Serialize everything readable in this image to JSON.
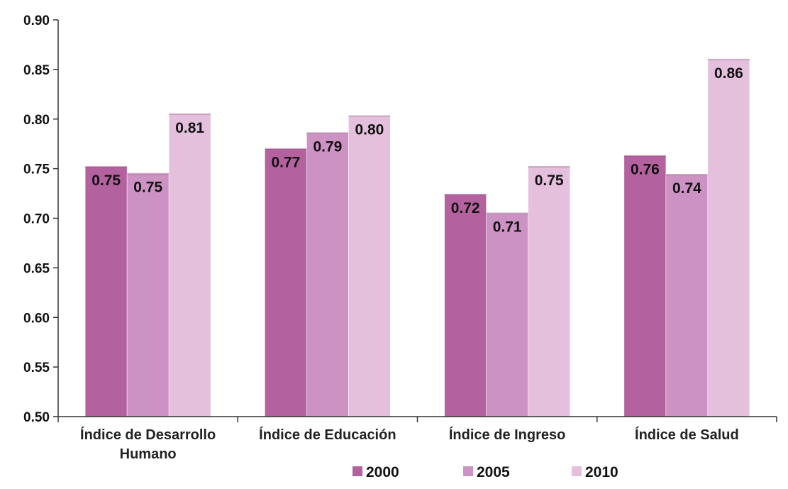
{
  "chart_data": {
    "type": "bar",
    "title": "",
    "xlabel": "",
    "ylabel": "",
    "ylim": [
      0.5,
      0.9
    ],
    "yticks": [
      "0.50",
      "0.55",
      "0.60",
      "0.65",
      "0.70",
      "0.75",
      "0.80",
      "0.85",
      "0.90"
    ],
    "grid": false,
    "legend_position": "bottom",
    "categories": [
      "Índice de Desarrollo Humano",
      "Índice de Educación",
      "Índice de Ingreso",
      "Índice de Salud"
    ],
    "series": [
      {
        "name": "2000",
        "color": "#b4629f",
        "values": [
          0.752,
          0.77,
          0.724,
          0.763
        ],
        "labels": [
          "0.75",
          "0.77",
          "0.72",
          "0.76"
        ]
      },
      {
        "name": "2005",
        "color": "#cc92c4",
        "values": [
          0.745,
          0.786,
          0.705,
          0.744
        ],
        "labels": [
          "0.75",
          "0.79",
          "0.71",
          "0.74"
        ]
      },
      {
        "name": "2010",
        "color": "#e4c0dd",
        "values": [
          0.805,
          0.803,
          0.752,
          0.86
        ],
        "labels": [
          "0.81",
          "0.80",
          "0.75",
          "0.86"
        ]
      }
    ]
  }
}
